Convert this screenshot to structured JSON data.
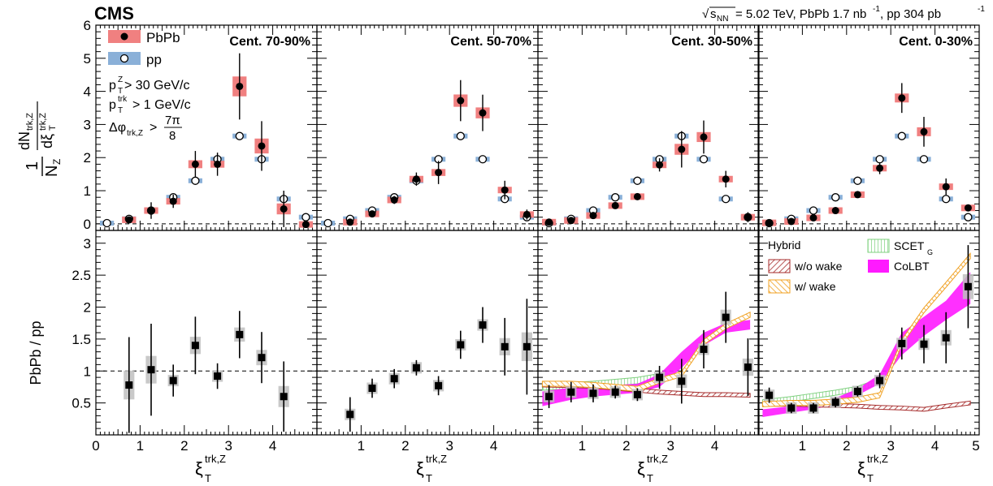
{
  "header": {
    "experiment": "CMS",
    "sqrt_symbol": "√",
    "energy_var": "s",
    "energy_sub": "NN",
    "energy_text": " = 5.02 TeV, PbPb 1.7 nb",
    "lumi_sup1": "-1",
    "lumi_mid": ", pp 304 pb",
    "lumi_sup2": "-1"
  },
  "legend_top": {
    "pbpb": "PbPb",
    "pp": "pp"
  },
  "cuts": {
    "cut1": {
      "var": "p",
      "sub": "T",
      "sup": "Z",
      "rel": " > 30 GeV/c"
    },
    "cut2": {
      "var": "p",
      "sub": "T",
      "sup": "trk",
      "rel": " > 1 GeV/c"
    },
    "cut3": {
      "var": "Δφ",
      "sub": "trk,Z",
      "rel": " > ",
      "num": "7π",
      "den": "8"
    }
  },
  "y_label_top": {
    "one": "1",
    "nz": "N",
    "nz_sub": "Z",
    "dn": "dN",
    "dn_sub": "trk,Z",
    "dxi": "dξ",
    "dxi_sub": "T",
    "dxi_sup": "trk,Z"
  },
  "y_label_bottom": "PbPb / pp",
  "x_label": {
    "var": "ξ",
    "sub": "T",
    "sup": "trk,Z"
  },
  "legend_models": {
    "hybrid": "Hybrid",
    "wo_wake": "w/o wake",
    "w_wake": "w/ wake",
    "scet": "SCET",
    "scet_sub": "G",
    "colbt": "CoLBT"
  },
  "colors": {
    "pbpb_box": "#f08080",
    "pp_box": "#8ab0d8",
    "ratio_box": "#c0c0c0",
    "wo_wake": "#a52a2a",
    "w_wake": "#f0a020",
    "scet": "#7ed07e",
    "colbt": "#ff1aff"
  },
  "chart_data": {
    "type": "scatter",
    "x_edges": [
      0,
      0.5,
      1,
      1.5,
      2,
      2.5,
      3,
      3.5,
      4,
      4.5,
      5
    ],
    "top_ylim": [
      -0.2,
      6
    ],
    "top_yticks": [
      0,
      1,
      2,
      3,
      4,
      5,
      6
    ],
    "ratio_ylim": [
      0,
      3.2
    ],
    "ratio_yticks": [
      0.5,
      1,
      1.5,
      2,
      2.5,
      3
    ],
    "xlim": [
      0,
      5
    ],
    "xticks": [
      1,
      2,
      3,
      4
    ],
    "xtick_labels": [
      "1",
      "2",
      "3",
      "4"
    ],
    "xtick_label_last": "5",
    "xtick_label_first": "0",
    "panels": [
      {
        "label": "Cent. 70-90%",
        "pp": [
          0.02,
          0.15,
          0.4,
          0.8,
          1.3,
          1.95,
          2.65,
          1.95,
          0.75,
          0.2
        ],
        "pbpb": [
          null,
          0.12,
          0.4,
          0.68,
          1.8,
          1.8,
          4.15,
          2.35,
          0.45,
          -0.02
        ],
        "pbpb_err": [
          null,
          0.1,
          0.25,
          0.2,
          0.4,
          0.35,
          1.0,
          0.75,
          0.55,
          0.1
        ],
        "ratio": [
          null,
          0.78,
          1.02,
          0.85,
          1.4,
          0.92,
          1.57,
          1.21,
          0.6,
          null
        ],
        "ratio_err": [
          null,
          0.75,
          0.72,
          0.25,
          0.45,
          0.2,
          0.37,
          0.4,
          0.55,
          null
        ],
        "models": false
      },
      {
        "label": "Cent. 50-70%",
        "pp": [
          0.02,
          0.15,
          0.4,
          0.8,
          1.3,
          1.95,
          2.65,
          1.95,
          0.75,
          0.2
        ],
        "pbpb": [
          null,
          0.05,
          0.3,
          0.72,
          1.35,
          1.55,
          3.72,
          3.35,
          1.02,
          0.28
        ],
        "pbpb_err": [
          null,
          0.08,
          0.1,
          0.12,
          0.2,
          0.35,
          0.62,
          0.55,
          0.28,
          0.15
        ],
        "ratio": [
          null,
          0.32,
          0.73,
          0.88,
          1.05,
          0.77,
          1.41,
          1.72,
          1.38,
          1.38
        ],
        "ratio_err": [
          null,
          0.27,
          0.15,
          0.15,
          0.12,
          0.15,
          0.22,
          0.28,
          0.45,
          0.75
        ],
        "models": false
      },
      {
        "label": "Cent. 30-50%",
        "pp": [
          0.02,
          0.15,
          0.4,
          0.8,
          1.3,
          1.95,
          2.65,
          1.95,
          0.75,
          0.2
        ],
        "pbpb": [
          0.05,
          0.1,
          0.25,
          0.55,
          0.82,
          1.78,
          2.25,
          2.62,
          1.35,
          0.2
        ],
        "pbpb_err": [
          0.05,
          0.06,
          0.07,
          0.08,
          0.1,
          0.2,
          0.55,
          0.5,
          0.25,
          0.15
        ],
        "ratio": [
          0.6,
          0.67,
          0.65,
          0.67,
          0.63,
          0.9,
          0.84,
          1.34,
          1.84,
          1.06
        ],
        "ratio_err": [
          0.18,
          0.16,
          0.14,
          0.1,
          0.1,
          0.18,
          0.35,
          0.3,
          0.4,
          0.45
        ],
        "models": true,
        "model_x": [
          0.1,
          0.75,
          1.25,
          1.75,
          2.25,
          2.75,
          3.25,
          3.75,
          4.25,
          4.8
        ],
        "wo_wake": [
          0.78,
          0.77,
          0.76,
          0.73,
          0.7,
          0.67,
          0.65,
          0.63,
          0.63,
          0.62
        ],
        "w_wake": [
          0.8,
          0.8,
          0.78,
          0.75,
          0.72,
          0.85,
          0.95,
          1.45,
          1.7,
          1.88
        ],
        "scet_lo": [
          0.7,
          0.72,
          0.74,
          0.77,
          0.8,
          0.86,
          null,
          null,
          null,
          null
        ],
        "scet_hi": [
          0.8,
          0.82,
          0.84,
          0.87,
          0.9,
          0.96,
          null,
          null,
          null,
          null
        ],
        "colbt_lo": [
          0.45,
          0.55,
          0.6,
          0.63,
          0.66,
          0.75,
          1.05,
          1.4,
          1.6,
          1.65
        ],
        "colbt_hi": [
          0.68,
          0.74,
          0.76,
          0.78,
          0.8,
          0.95,
          1.3,
          1.6,
          1.75,
          1.8
        ]
      },
      {
        "label": "Cent. 0-30%",
        "pp": [
          0.02,
          0.15,
          0.4,
          0.8,
          1.3,
          1.95,
          2.65,
          1.95,
          0.75,
          0.2
        ],
        "pbpb": [
          0.03,
          0.07,
          0.18,
          0.4,
          0.88,
          1.68,
          3.8,
          2.78,
          1.12,
          0.48
        ],
        "pbpb_err": [
          0.04,
          0.05,
          0.06,
          0.07,
          0.08,
          0.18,
          0.45,
          0.45,
          0.25,
          0.1
        ],
        "ratio": [
          0.62,
          0.42,
          0.42,
          0.51,
          0.68,
          0.85,
          1.43,
          1.42,
          1.52,
          2.32
        ],
        "ratio_err": [
          0.12,
          0.08,
          0.08,
          0.08,
          0.08,
          0.12,
          0.25,
          0.3,
          0.4,
          0.65
        ],
        "models": true,
        "model_x": [
          0.1,
          0.75,
          1.25,
          1.75,
          2.25,
          2.75,
          3.25,
          3.75,
          4.25,
          4.8
        ],
        "wo_wake": [
          0.48,
          0.48,
          0.47,
          0.46,
          0.45,
          0.43,
          0.42,
          0.4,
          0.45,
          0.5
        ],
        "w_wake": [
          0.48,
          0.5,
          0.5,
          0.52,
          0.55,
          0.62,
          1.45,
          1.95,
          2.35,
          2.8
        ],
        "scet_lo": [
          0.47,
          0.52,
          0.57,
          0.62,
          0.68,
          0.8,
          null,
          null,
          null,
          null
        ],
        "scet_hi": [
          0.55,
          0.6,
          0.65,
          0.7,
          0.76,
          0.88,
          null,
          null,
          null,
          null
        ],
        "colbt_lo": [
          0.28,
          0.35,
          0.4,
          0.48,
          0.62,
          0.8,
          1.25,
          1.55,
          1.8,
          2.05
        ],
        "colbt_hi": [
          0.4,
          0.45,
          0.5,
          0.58,
          0.72,
          0.95,
          1.6,
          1.85,
          2.1,
          2.55
        ]
      }
    ]
  }
}
